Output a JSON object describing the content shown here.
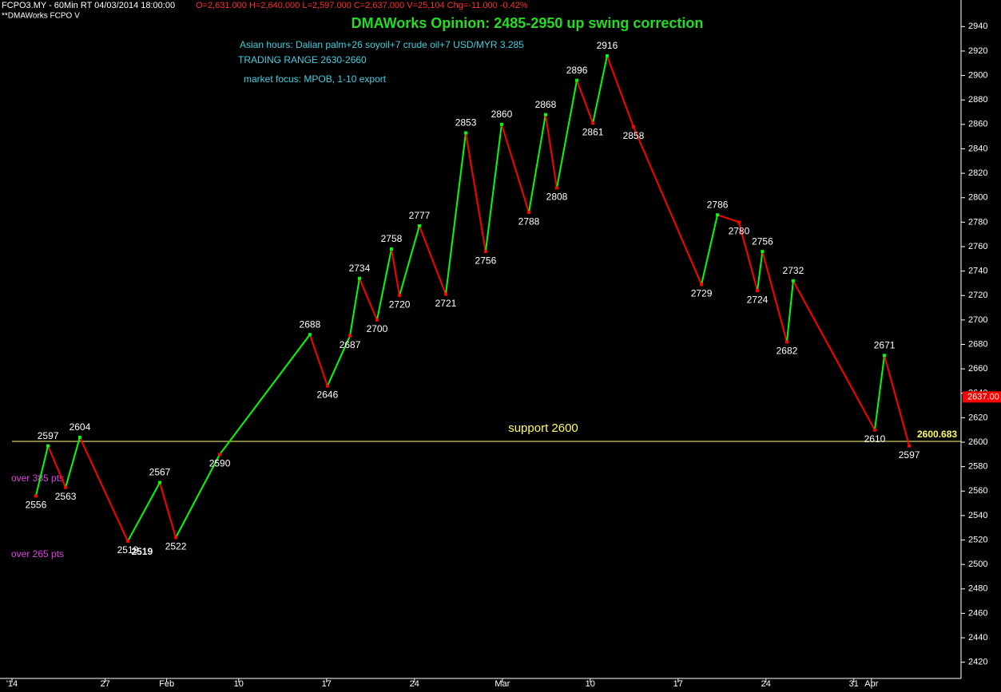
{
  "chart_data": {
    "type": "line",
    "header": "FCPO3.MY - 60Min RT  04/03/2014 18:00:00",
    "ohlc_text": "O=2,631.000  H=2,640.000  L=2,597.000  C=2,637.000  V=25,104  Chg=-11.000  -0.42%",
    "subheader": "**DMAWorks FCPO V",
    "title": "DMAWorks Opinion: 2485-2950 up swing correction",
    "notes": [
      "Asian hours: Dalian palm+26 soyoil+7 crude oil+7 USD/MYR 3.285",
      "TRADING RANGE 2630-2660",
      "market focus: MPOB, 1-10 export"
    ],
    "side_notes": [
      "over 385 pts",
      "over 265 pts"
    ],
    "support": {
      "value": 2600.683,
      "label": "2600.683",
      "text": "support 2600"
    },
    "last_price": {
      "value": 2637,
      "label": "2637.00"
    },
    "extra_label": {
      "value": 2519,
      "x": 6.9
    },
    "xlim": [
      -0.5,
      53.5
    ],
    "xticks": [
      {
        "value": -0.5,
        "label": "'14"
      },
      {
        "value": 4.8,
        "label": "27"
      },
      {
        "value": 8.3,
        "label": "Feb"
      },
      {
        "value": 12.4,
        "label": "10"
      },
      {
        "value": 17.4,
        "label": "17"
      },
      {
        "value": 22.4,
        "label": "24"
      },
      {
        "value": 27.4,
        "label": "Mar"
      },
      {
        "value": 32.4,
        "label": "10"
      },
      {
        "value": 37.4,
        "label": "17"
      },
      {
        "value": 42.4,
        "label": "24"
      },
      {
        "value": 47.4,
        "label": "31"
      },
      {
        "value": 48.4,
        "label": "Apr"
      }
    ],
    "ylim": [
      2410,
      2950
    ],
    "yticks": [
      2420,
      2440,
      2460,
      2480,
      2500,
      2520,
      2540,
      2560,
      2580,
      2600,
      2620,
      2640,
      2660,
      2680,
      2700,
      2720,
      2740,
      2760,
      2780,
      2800,
      2820,
      2840,
      2860,
      2880,
      2900,
      2920,
      2940
    ],
    "series": [
      {
        "name": "FCPO3.MY",
        "up_color": "#00ff00",
        "down_color": "#ff0000",
        "x": [
          0.86,
          1.55,
          2.55,
          3.36,
          6.09,
          7.91,
          8.82,
          11.32,
          16.45,
          17.45,
          18.73,
          19.27,
          20.27,
          21.09,
          21.55,
          22.68,
          24.18,
          25.32,
          26.45,
          27.36,
          28.91,
          29.86,
          30.5,
          31.64,
          32.55,
          33.36,
          34.86,
          38.73,
          39.64,
          40.86,
          41.91,
          42.2,
          43.59,
          43.95,
          48.59,
          49.14,
          50.55
        ],
        "values": [
          2556,
          2597,
          2563,
          2604,
          2519,
          2567,
          2522,
          2590,
          2688,
          2646,
          2687,
          2734,
          2700,
          2758,
          2720,
          2777,
          2721,
          2853,
          2756,
          2860,
          2788,
          2868,
          2808,
          2896,
          2861,
          2916,
          2858,
          2729,
          2786,
          2780,
          2724,
          2756,
          2682,
          2732,
          2610,
          2671,
          2597
        ]
      }
    ]
  }
}
